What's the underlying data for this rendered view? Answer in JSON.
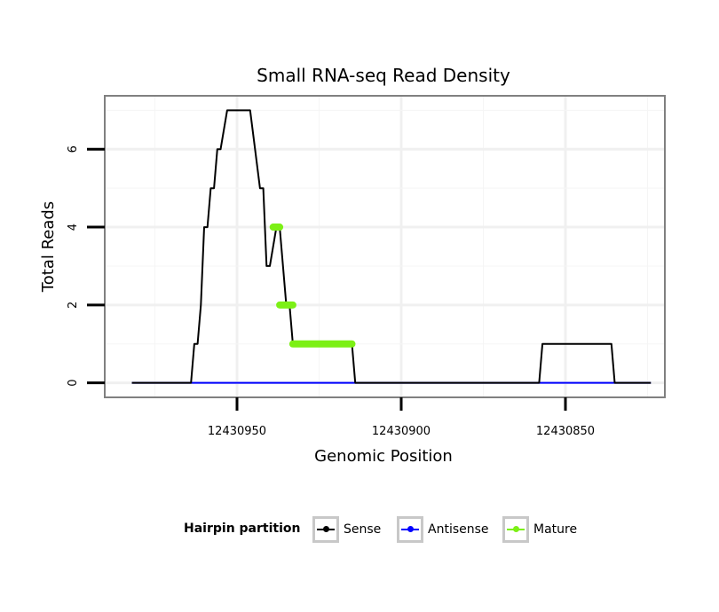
{
  "chart_data": {
    "type": "line",
    "title": "Small RNA-seq Read Density",
    "xlabel": "Genomic Position",
    "ylabel": "Total Reads",
    "x_reversed": true,
    "xlim": [
      12430990,
      12430820
    ],
    "ylim": [
      -0.35,
      7.35
    ],
    "x_ticks": [
      12430950,
      12430900,
      12430850
    ],
    "x_tick_labels": [
      "12430950",
      "12430900",
      "12430850"
    ],
    "y_ticks": [
      0,
      2,
      4,
      6
    ],
    "y_tick_labels": [
      "0",
      "2",
      "4",
      "6"
    ],
    "grid": true,
    "legend": {
      "title": "Hairpin partition",
      "position": "bottom",
      "entries": [
        "Sense",
        "Antisense",
        "Mature"
      ]
    },
    "series": [
      {
        "name": "Sense",
        "color": "#000000",
        "x": [
          12430982,
          12430964,
          12430963,
          12430962,
          12430961,
          12430960,
          12430959,
          12430958,
          12430957,
          12430956,
          12430955,
          12430953,
          12430952,
          12430946,
          12430943,
          12430942,
          12430941,
          12430940,
          12430938,
          12430937,
          12430935,
          12430934,
          12430933,
          12430932,
          12430930,
          12430929,
          12430915,
          12430914,
          12430858,
          12430857,
          12430836,
          12430835,
          12430824
        ],
        "y": [
          0,
          0,
          1,
          1,
          2,
          4,
          4,
          5,
          5,
          6,
          6,
          7,
          7,
          7,
          5,
          5,
          3,
          3,
          4,
          4,
          2,
          2,
          1,
          1,
          1,
          1,
          1,
          0,
          0,
          1,
          1,
          0,
          0
        ]
      },
      {
        "name": "Antisense",
        "color": "#0000ff",
        "x": [
          12430982,
          12430824
        ],
        "y": [
          0,
          0
        ]
      },
      {
        "name": "Mature",
        "color": "#7cf015",
        "segments": [
          {
            "x": [
              12430939,
              12430937
            ],
            "y": [
              4,
              4
            ]
          },
          {
            "x": [
              12430937,
              12430933
            ],
            "y": [
              2,
              2
            ]
          },
          {
            "x": [
              12430933,
              12430915
            ],
            "y": [
              1,
              1
            ]
          }
        ]
      }
    ]
  }
}
